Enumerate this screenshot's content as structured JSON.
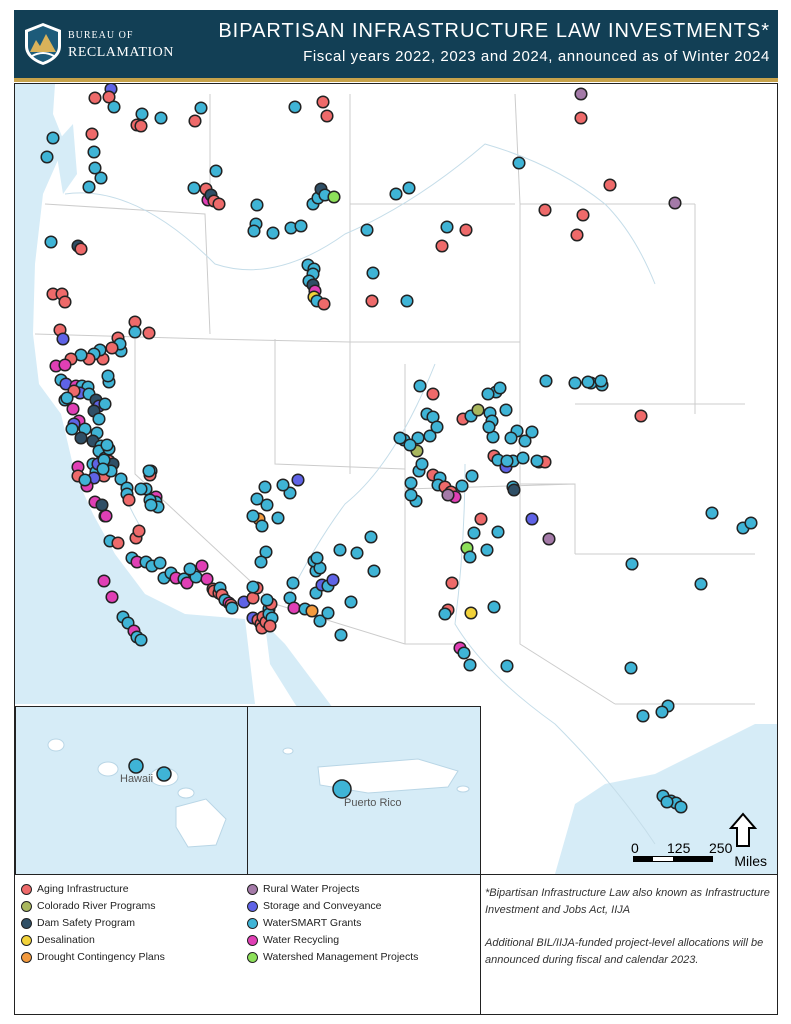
{
  "header": {
    "logo_top": "BUREAU OF",
    "logo_bottom": "RECLAMATION",
    "title": "BIPARTISAN INFRASTRUCTURE LAW INVESTMENTS*",
    "subtitle": "Fiscal years 2022, 2023 and 2024, announced as of Winter 2024"
  },
  "insets": {
    "hawaii": "Hawaii",
    "puerto_rico": "Puerto Rico"
  },
  "scale": {
    "labels": [
      "0",
      "125",
      "250"
    ],
    "unit": "Miles"
  },
  "legend": [
    {
      "label": "Aging Infrastructure",
      "color": "#ee6a6a"
    },
    {
      "label": "Colorado River Programs",
      "color": "#a9b75e"
    },
    {
      "label": "Dam Safety Program",
      "color": "#2f4f66"
    },
    {
      "label": "Desalination",
      "color": "#f2d23a"
    },
    {
      "label": "Drought Contingency Plans",
      "color": "#f39a3e"
    },
    {
      "label": "Rural Water Projects",
      "color": "#a47aa8"
    },
    {
      "label": "Storage and Conveyance",
      "color": "#5f63e6"
    },
    {
      "label": "WaterSMART Grants",
      "color": "#3fb4d6"
    },
    {
      "label": "Water Recycling",
      "color": "#e03fb5"
    },
    {
      "label": "Watershed Management Projects",
      "color": "#8de05a"
    }
  ],
  "notes": {
    "note1": "*Bipartisan Infrastructure Law also known as Infrastructure Investment and Jobs Act, IIJA",
    "note2": "Additional BIL/IIJA-funded project-level allocations will be announced during fiscal and calendar 2023."
  }
}
